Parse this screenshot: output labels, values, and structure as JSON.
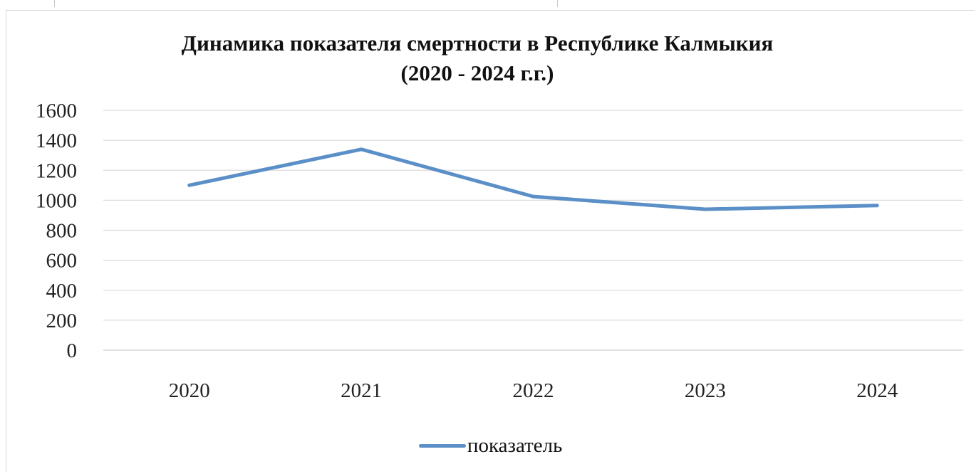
{
  "chart_data": {
    "type": "line",
    "title": "Динамика показателя смертности в Республике Калмыкия",
    "subtitle": "(2020 - 2024 г.г.)",
    "categories": [
      "2020",
      "2021",
      "2022",
      "2023",
      "2024"
    ],
    "series": [
      {
        "name": "показатель",
        "values": [
          1100,
          1340,
          1025,
          940,
          965
        ],
        "color": "#5b8fc7"
      }
    ],
    "ylim": [
      0,
      1600
    ],
    "yticks": [
      0,
      200,
      400,
      600,
      800,
      1000,
      1200,
      1400,
      1600
    ],
    "grid": true,
    "legend_position": "bottom"
  }
}
